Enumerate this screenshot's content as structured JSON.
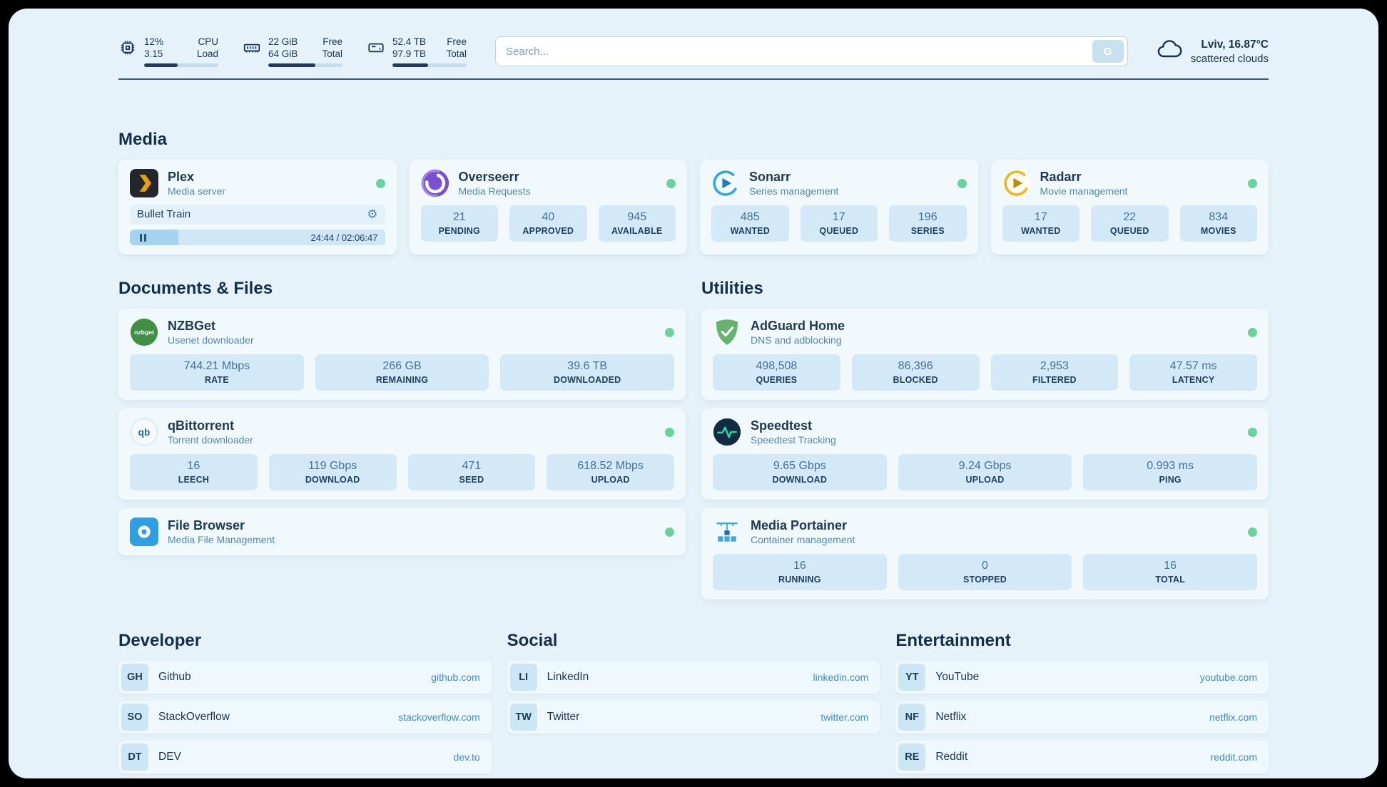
{
  "topbar": {
    "cpu": {
      "v1": "12%",
      "l1": "CPU",
      "v2": "3.15",
      "l2": "Load",
      "pct": 45
    },
    "ram": {
      "v1": "22 GiB",
      "l1": "Free",
      "v2": "64 GiB",
      "l2": "Total",
      "pct": 63
    },
    "disk": {
      "v1": "52.4 TB",
      "l1": "Free",
      "v2": "97.9 TB",
      "l2": "Total",
      "pct": 48
    },
    "search": {
      "placeholder": "Search...",
      "button_label": "G"
    },
    "weather": {
      "location": "Lviv, 16.87°C",
      "condition": "scattered clouds"
    }
  },
  "media": {
    "title": "Media",
    "plex": {
      "name": "Plex",
      "desc": "Media server",
      "now_playing": "Bullet Train",
      "time": "24:44 / 02:06:47",
      "progress_pct": 19
    },
    "overseerr": {
      "name": "Overseerr",
      "desc": "Media Requests",
      "stats": [
        {
          "value": "21",
          "label": "PENDING"
        },
        {
          "value": "40",
          "label": "APPROVED"
        },
        {
          "value": "945",
          "label": "AVAILABLE"
        }
      ]
    },
    "sonarr": {
      "name": "Sonarr",
      "desc": "Series management",
      "stats": [
        {
          "value": "485",
          "label": "WANTED"
        },
        {
          "value": "17",
          "label": "QUEUED"
        },
        {
          "value": "196",
          "label": "SERIES"
        }
      ]
    },
    "radarr": {
      "name": "Radarr",
      "desc": "Movie management",
      "stats": [
        {
          "value": "17",
          "label": "WANTED"
        },
        {
          "value": "22",
          "label": "QUEUED"
        },
        {
          "value": "834",
          "label": "MOVIES"
        }
      ]
    }
  },
  "documents": {
    "title": "Documents & Files",
    "nzbget": {
      "name": "NZBGet",
      "desc": "Usenet downloader",
      "icon_text": "nzbget",
      "stats": [
        {
          "value": "744.21 Mbps",
          "label": "RATE"
        },
        {
          "value": "266 GB",
          "label": "REMAINING"
        },
        {
          "value": "39.6 TB",
          "label": "DOWNLOADED"
        }
      ]
    },
    "qbittorrent": {
      "name": "qBittorrent",
      "desc": "Torrent downloader",
      "icon_text": "qb",
      "stats": [
        {
          "value": "16",
          "label": "LEECH"
        },
        {
          "value": "119 Gbps",
          "label": "DOWNLOAD"
        },
        {
          "value": "471",
          "label": "SEED"
        },
        {
          "value": "618.52 Mbps",
          "label": "UPLOAD"
        }
      ]
    },
    "filebrowser": {
      "name": "File Browser",
      "desc": "Media File Management"
    }
  },
  "utilities": {
    "title": "Utilities",
    "adguard": {
      "name": "AdGuard Home",
      "desc": "DNS and adblocking",
      "stats": [
        {
          "value": "498,508",
          "label": "QUERIES"
        },
        {
          "value": "86,396",
          "label": "BLOCKED"
        },
        {
          "value": "2,953",
          "label": "FILTERED"
        },
        {
          "value": "47.57 ms",
          "label": "LATENCY"
        }
      ]
    },
    "speedtest": {
      "name": "Speedtest",
      "desc": "Speedtest Tracking",
      "stats": [
        {
          "value": "9.65 Gbps",
          "label": "DOWNLOAD"
        },
        {
          "value": "9.24 Gbps",
          "label": "UPLOAD"
        },
        {
          "value": "0.993 ms",
          "label": "PING"
        }
      ]
    },
    "portainer": {
      "name": "Media Portainer",
      "desc": "Container management",
      "stats": [
        {
          "value": "16",
          "label": "RUNNING"
        },
        {
          "value": "0",
          "label": "STOPPED"
        },
        {
          "value": "16",
          "label": "TOTAL"
        }
      ]
    }
  },
  "bookmarks": {
    "developer": {
      "title": "Developer",
      "items": [
        {
          "abbr": "GH",
          "name": "Github",
          "url": "github.com"
        },
        {
          "abbr": "SO",
          "name": "StackOverflow",
          "url": "stackoverflow.com"
        },
        {
          "abbr": "DT",
          "name": "DEV",
          "url": "dev.to"
        }
      ]
    },
    "social": {
      "title": "Social",
      "items": [
        {
          "abbr": "LI",
          "name": "LinkedIn",
          "url": "linkedin.com"
        },
        {
          "abbr": "TW",
          "name": "Twitter",
          "url": "twitter.com"
        }
      ]
    },
    "entertainment": {
      "title": "Entertainment",
      "items": [
        {
          "abbr": "YT",
          "name": "YouTube",
          "url": "youtube.com"
        },
        {
          "abbr": "NF",
          "name": "Netflix",
          "url": "netflix.com"
        },
        {
          "abbr": "RE",
          "name": "Reddit",
          "url": "reddit.com"
        }
      ]
    }
  }
}
